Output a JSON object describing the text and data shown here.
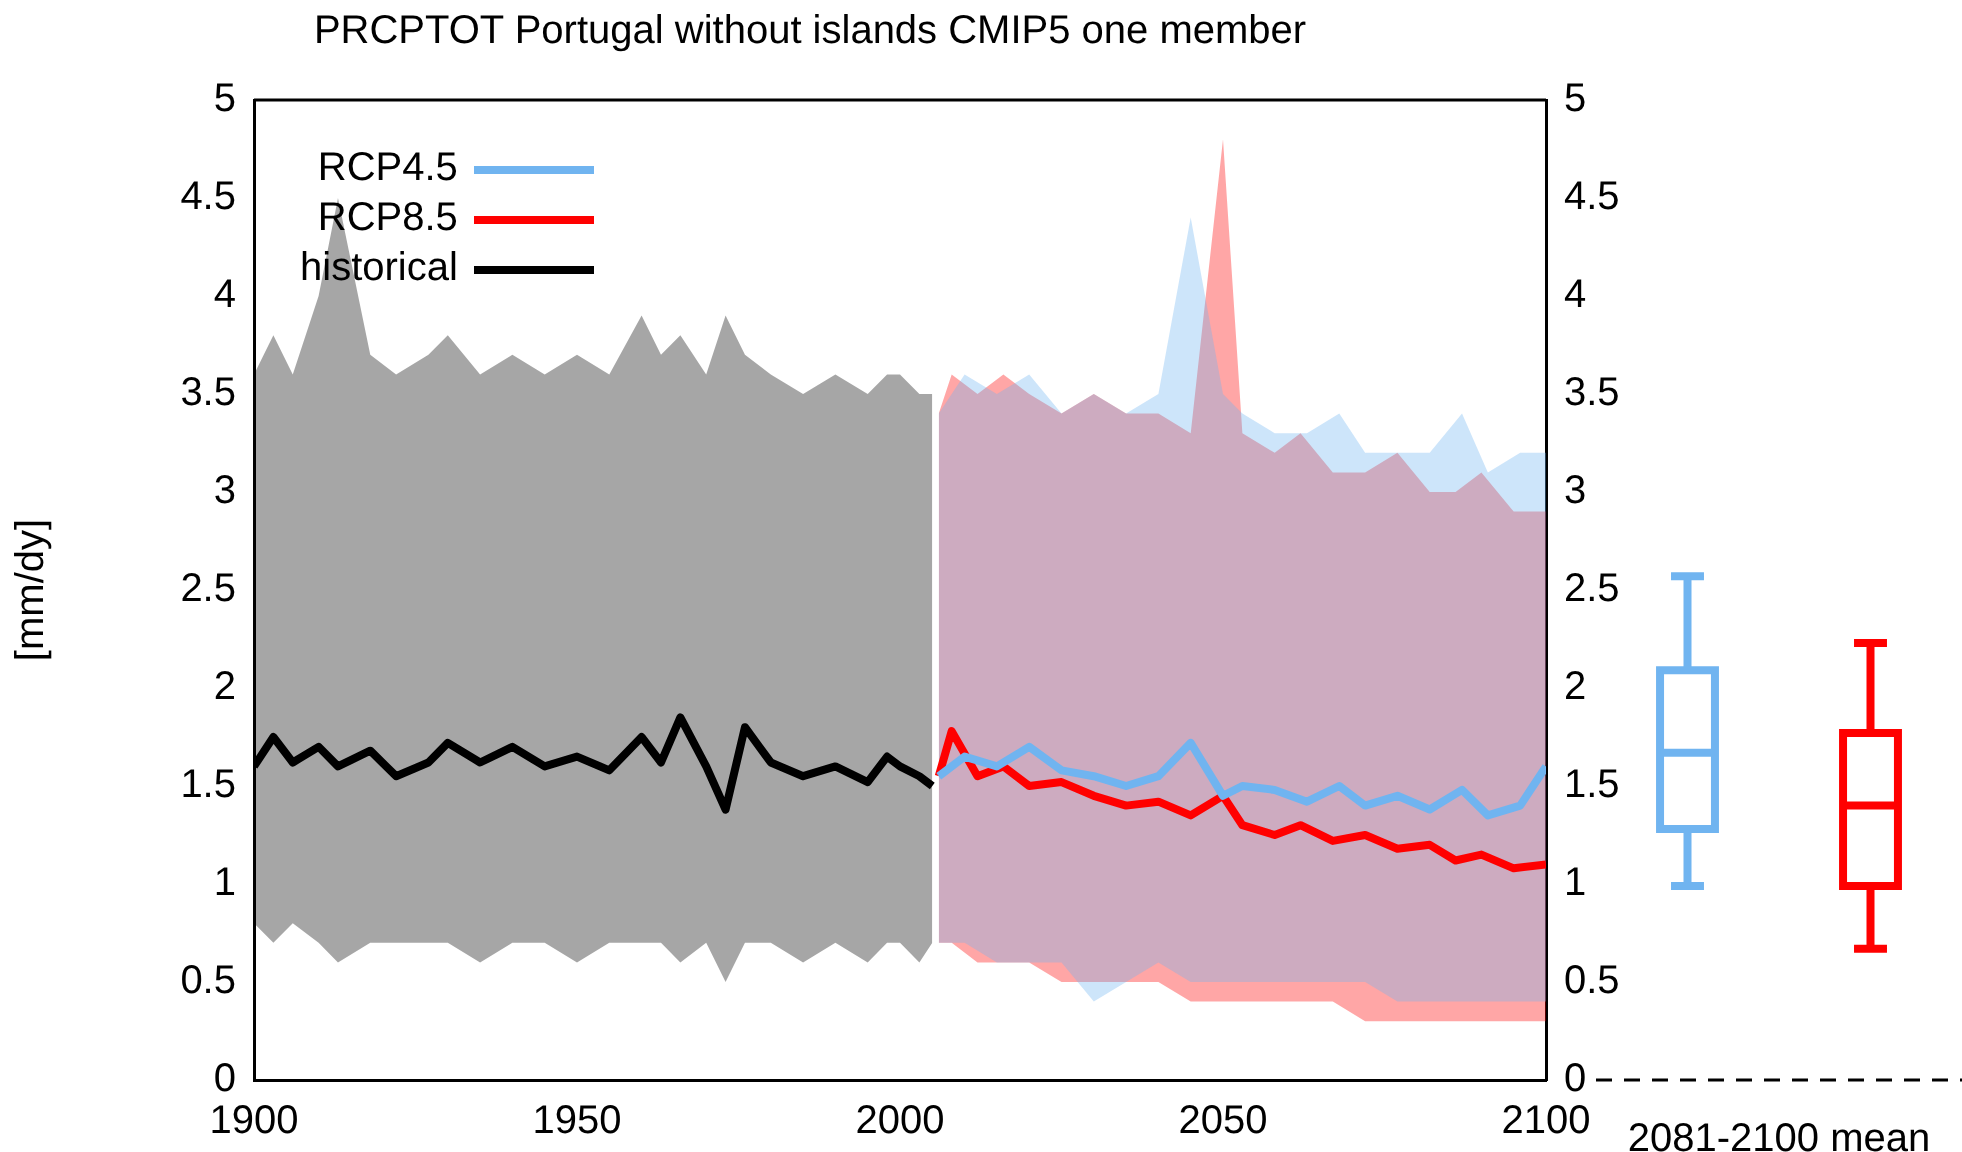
{
  "chart_data": [
    {
      "type": "line",
      "title": "PRCPTOT Portugal without islands CMIP5 one member",
      "ylabel": "[mm/dy]",
      "xlim": [
        1900,
        2100
      ],
      "xticks": [
        1900,
        1950,
        2000,
        2050,
        2100
      ],
      "ylim": [
        0,
        5
      ],
      "yticks": [
        0,
        0.5,
        1,
        1.5,
        2,
        2.5,
        3,
        3.5,
        4,
        4.5,
        5
      ],
      "y2lim": [
        0,
        5
      ],
      "y2ticks": [
        0,
        0.5,
        1,
        1.5,
        2,
        2.5,
        3,
        3.5,
        4,
        4.5,
        5
      ],
      "grid": false,
      "legend": "top left",
      "marker": "none",
      "line_style": "solid",
      "series": [
        {
          "name": "RCP4.5",
          "color": "#70b4f0",
          "x": [
            2006,
            2010,
            2015,
            2020,
            2025,
            2030,
            2035,
            2040,
            2045,
            2050,
            2053,
            2058,
            2063,
            2068,
            2072,
            2077,
            2082,
            2087,
            2091,
            2096,
            2100
          ],
          "values": [
            1.55,
            1.65,
            1.6,
            1.7,
            1.58,
            1.55,
            1.5,
            1.55,
            1.72,
            1.45,
            1.5,
            1.48,
            1.42,
            1.5,
            1.4,
            1.45,
            1.38,
            1.48,
            1.35,
            1.4,
            1.6
          ],
          "lower": [
            0.7,
            0.7,
            0.6,
            0.6,
            0.6,
            0.4,
            0.5,
            0.6,
            0.5,
            0.5,
            0.5,
            0.5,
            0.5,
            0.5,
            0.5,
            0.4,
            0.4,
            0.4,
            0.4,
            0.4,
            0.4
          ],
          "upper": [
            3.4,
            3.6,
            3.5,
            3.6,
            3.4,
            3.5,
            3.4,
            3.5,
            4.4,
            3.5,
            3.4,
            3.3,
            3.3,
            3.4,
            3.2,
            3.2,
            3.2,
            3.4,
            3.1,
            3.2,
            3.2
          ]
        },
        {
          "name": "RCP8.5",
          "color": "#ff0000",
          "x": [
            2006,
            2008,
            2012,
            2016,
            2020,
            2025,
            2030,
            2035,
            2040,
            2045,
            2050,
            2053,
            2058,
            2062,
            2067,
            2072,
            2077,
            2082,
            2086,
            2090,
            2095,
            2100
          ],
          "values": [
            1.55,
            1.78,
            1.55,
            1.6,
            1.5,
            1.52,
            1.45,
            1.4,
            1.42,
            1.35,
            1.45,
            1.3,
            1.25,
            1.3,
            1.22,
            1.25,
            1.18,
            1.2,
            1.12,
            1.15,
            1.08,
            1.1
          ],
          "lower": [
            0.7,
            0.7,
            0.6,
            0.6,
            0.6,
            0.5,
            0.5,
            0.5,
            0.5,
            0.4,
            0.4,
            0.4,
            0.4,
            0.4,
            0.4,
            0.3,
            0.3,
            0.3,
            0.3,
            0.3,
            0.3,
            0.3
          ],
          "upper": [
            3.4,
            3.6,
            3.5,
            3.6,
            3.5,
            3.4,
            3.5,
            3.4,
            3.4,
            3.3,
            4.8,
            3.3,
            3.2,
            3.3,
            3.1,
            3.1,
            3.2,
            3.0,
            3.0,
            3.1,
            2.9,
            2.9
          ]
        },
        {
          "name": "historical",
          "color": "#000000",
          "x": [
            1900,
            1903,
            1906,
            1910,
            1913,
            1918,
            1922,
            1927,
            1930,
            1935,
            1940,
            1945,
            1950,
            1955,
            1960,
            1963,
            1966,
            1970,
            1973,
            1976,
            1980,
            1985,
            1990,
            1995,
            1998,
            2000,
            2003,
            2005
          ],
          "values": [
            1.6,
            1.75,
            1.62,
            1.7,
            1.6,
            1.68,
            1.55,
            1.62,
            1.72,
            1.62,
            1.7,
            1.6,
            1.65,
            1.58,
            1.75,
            1.62,
            1.85,
            1.6,
            1.38,
            1.8,
            1.62,
            1.55,
            1.6,
            1.52,
            1.65,
            1.6,
            1.55,
            1.5
          ],
          "lower": [
            0.8,
            0.7,
            0.8,
            0.7,
            0.6,
            0.7,
            0.7,
            0.7,
            0.7,
            0.6,
            0.7,
            0.7,
            0.6,
            0.7,
            0.7,
            0.7,
            0.6,
            0.7,
            0.5,
            0.7,
            0.7,
            0.6,
            0.7,
            0.6,
            0.7,
            0.7,
            0.6,
            0.7
          ],
          "upper": [
            3.6,
            3.8,
            3.6,
            4.0,
            4.5,
            3.7,
            3.6,
            3.7,
            3.8,
            3.6,
            3.7,
            3.6,
            3.7,
            3.6,
            3.9,
            3.7,
            3.8,
            3.6,
            3.9,
            3.7,
            3.6,
            3.5,
            3.6,
            3.5,
            3.6,
            3.6,
            3.5,
            3.5
          ]
        }
      ]
    },
    {
      "type": "box",
      "xlabel": "2081-2100 mean",
      "categories": [
        null,
        null
      ],
      "colors": [
        "#70b4f0",
        "#ff0000"
      ],
      "ylim": [
        0,
        5
      ],
      "tick_labels": false,
      "grid": false,
      "legend": false,
      "boxes": [
        {
          "low": 0.99,
          "q1": 1.28,
          "median": 1.67,
          "q3": 2.09,
          "high": 2.57
        },
        {
          "low": 0.67,
          "q1": 0.99,
          "median": 1.4,
          "q3": 1.77,
          "high": 2.23
        }
      ],
      "ref_lines": [
        {
          "axis": "y",
          "value": 0,
          "line_style": "dashed",
          "color": "#000000"
        }
      ]
    }
  ]
}
